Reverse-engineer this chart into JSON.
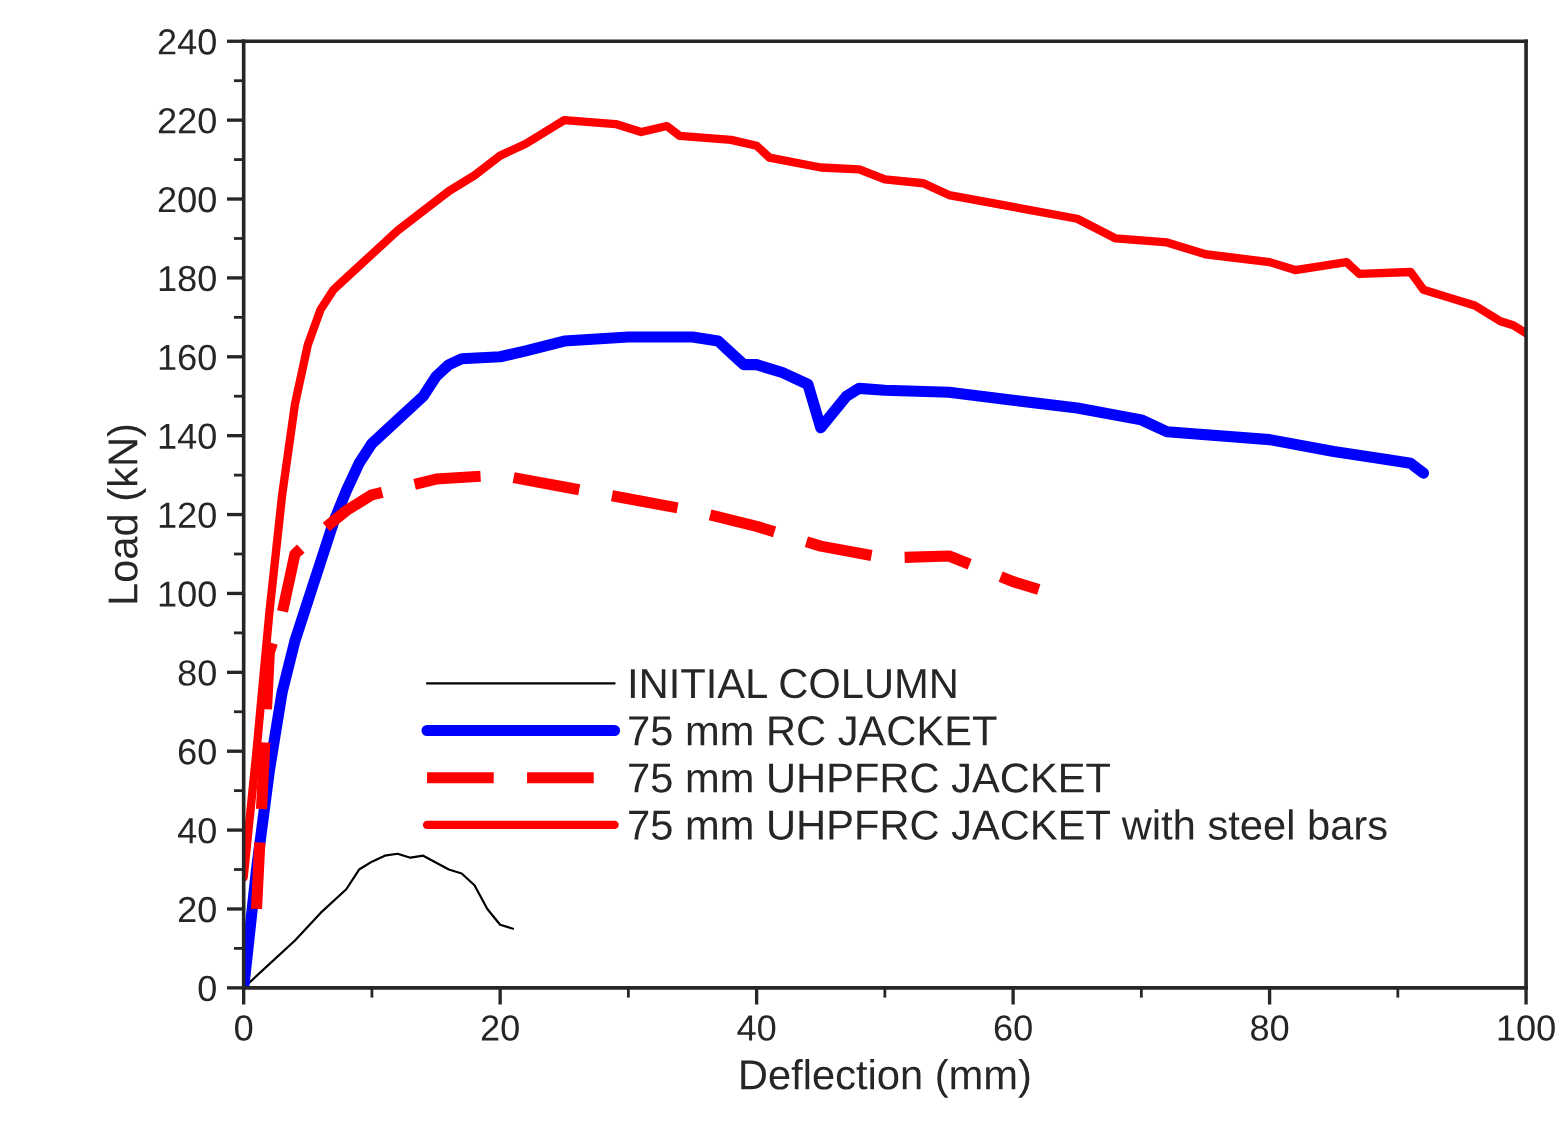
{
  "chart_data": {
    "type": "line",
    "xlabel": "Deflection (mm)",
    "ylabel": "Load (kN)",
    "xlim": [
      0,
      100
    ],
    "xticks": [
      0,
      20,
      40,
      60,
      80,
      100
    ],
    "ylim": [
      0,
      240
    ],
    "yticks": [
      0,
      20,
      40,
      60,
      80,
      100,
      120,
      140,
      160,
      180,
      200,
      220,
      240
    ],
    "grid": false,
    "legend": "bottom",
    "marker": "none",
    "series": [
      {
        "name": "INITIAL COLUMN",
        "color": "#000000",
        "line_style": "solid",
        "x": [
          0,
          2,
          4,
          6,
          8,
          9,
          10,
          11,
          12,
          13,
          14,
          16,
          17,
          18,
          19,
          20,
          21
        ],
        "values": [
          0,
          6,
          12,
          19,
          25,
          30,
          32,
          33.5,
          34,
          33,
          33.5,
          30,
          29,
          26,
          20,
          16,
          15
        ]
      },
      {
        "name": "75 mm RC JACKET",
        "color": "#0000ff",
        "line_style": "solid",
        "x": [
          0,
          0.5,
          1,
          2,
          3,
          4,
          5,
          6,
          7,
          8,
          9,
          10,
          12,
          14,
          15,
          16,
          17,
          20,
          22,
          25,
          30,
          35,
          37,
          38,
          39,
          40,
          42,
          44,
          45,
          46,
          47,
          48,
          50,
          55,
          60,
          65,
          70,
          72,
          80,
          85,
          89,
          91,
          92
        ],
        "values": [
          0,
          15,
          30,
          55,
          75,
          88,
          98,
          108,
          118,
          126,
          133,
          138,
          144,
          150,
          155,
          158,
          159.5,
          160,
          161.5,
          164,
          165,
          165,
          164,
          161,
          158,
          158,
          156,
          153,
          142,
          146,
          150,
          152,
          151.5,
          151,
          149,
          147,
          144,
          141,
          139,
          136,
          134,
          133,
          130.5
        ]
      },
      {
        "name": "75 mm UHPFRC JACKET",
        "color": "#ff0000",
        "line_style": "dashed",
        "x": [
          1,
          2,
          3,
          4,
          5,
          8,
          10,
          15,
          20,
          25,
          30,
          35,
          40,
          45,
          50,
          55,
          60,
          62
        ],
        "values": [
          20,
          85,
          95,
          110,
          113,
          121,
          125,
          129,
          130,
          127,
          124,
          121,
          117,
          112,
          109,
          109.5,
          103,
          101
        ]
      },
      {
        "name": "75 mm UHPFRC JACKET with steel bars",
        "color": "#ff0000",
        "line_style": "solid",
        "x": [
          0,
          1,
          2,
          3,
          4,
          5,
          6,
          7,
          8,
          10,
          12,
          14,
          16,
          18,
          20,
          22,
          24,
          25,
          27,
          29,
          31,
          33,
          34,
          38,
          40,
          41,
          45,
          48,
          50,
          53,
          55,
          60,
          65,
          68,
          72,
          75,
          80,
          82,
          84,
          86,
          87,
          91,
          92,
          94,
          96,
          98,
          99,
          100
        ],
        "values": [
          28,
          60,
          95,
          125,
          148,
          163,
          172,
          177,
          180,
          186,
          192,
          197,
          202,
          206,
          211,
          214,
          218,
          220,
          219.5,
          219,
          217,
          218.5,
          216,
          215,
          213.5,
          210.5,
          208,
          207.5,
          205,
          204,
          201,
          198,
          195,
          190,
          189,
          186,
          184,
          182,
          183,
          184,
          181,
          181.5,
          177,
          175,
          173,
          169,
          168,
          166
        ]
      }
    ]
  }
}
